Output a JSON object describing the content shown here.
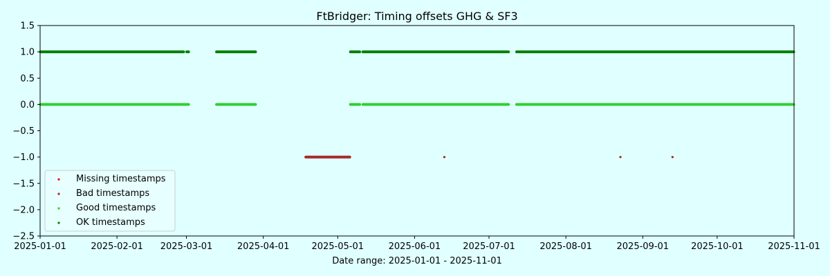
{
  "chart_data": {
    "type": "scatter",
    "title": "FtBridger: Timing offsets GHG & SF3",
    "xlabel": "Date range: 2025-01-01 - 2025-11-01",
    "ylabel": "",
    "xlim": [
      "2025-01-01",
      "2025-11-01"
    ],
    "ylim": [
      -2.5,
      1.5
    ],
    "x_ticks": [
      "2025-01-01",
      "2025-02-01",
      "2025-03-01",
      "2025-04-01",
      "2025-05-01",
      "2025-06-01",
      "2025-07-01",
      "2025-08-01",
      "2025-09-01",
      "2025-10-01",
      "2025-11-01"
    ],
    "y_ticks": [
      1.5,
      1.0,
      0.5,
      0.0,
      -0.5,
      -1.0,
      -1.5,
      -2.0,
      -2.5
    ],
    "grid": false,
    "legend_position": "lower-left",
    "background": "#e0ffff",
    "series": [
      {
        "name": "Missing timestamps",
        "color": "#ff0000",
        "y": -1.0,
        "ranges": [],
        "points": []
      },
      {
        "name": "Bad timestamps",
        "color": "#a52a2a",
        "y": -1.0,
        "ranges": [
          [
            "2025-04-18",
            "2025-05-06"
          ]
        ],
        "points": [
          "2025-06-13",
          "2025-08-23",
          "2025-09-13"
        ]
      },
      {
        "name": "Good timestamps",
        "color": "#32cd32",
        "y": 0.0,
        "ranges": [
          [
            "2025-01-01",
            "2025-03-02"
          ],
          [
            "2025-03-13",
            "2025-03-29"
          ],
          [
            "2025-05-06",
            "2025-05-10"
          ],
          [
            "2025-05-11",
            "2025-07-09"
          ],
          [
            "2025-07-12",
            "2025-11-01"
          ]
        ],
        "points": []
      },
      {
        "name": "OK timestamps",
        "color": "#008000",
        "y": 1.0,
        "ranges": [
          [
            "2025-01-01",
            "2025-02-28"
          ],
          [
            "2025-03-01",
            "2025-03-02"
          ],
          [
            "2025-03-13",
            "2025-03-29"
          ],
          [
            "2025-05-06",
            "2025-05-10"
          ],
          [
            "2025-05-11",
            "2025-07-09"
          ],
          [
            "2025-07-12",
            "2025-11-01"
          ]
        ],
        "points": []
      }
    ]
  }
}
